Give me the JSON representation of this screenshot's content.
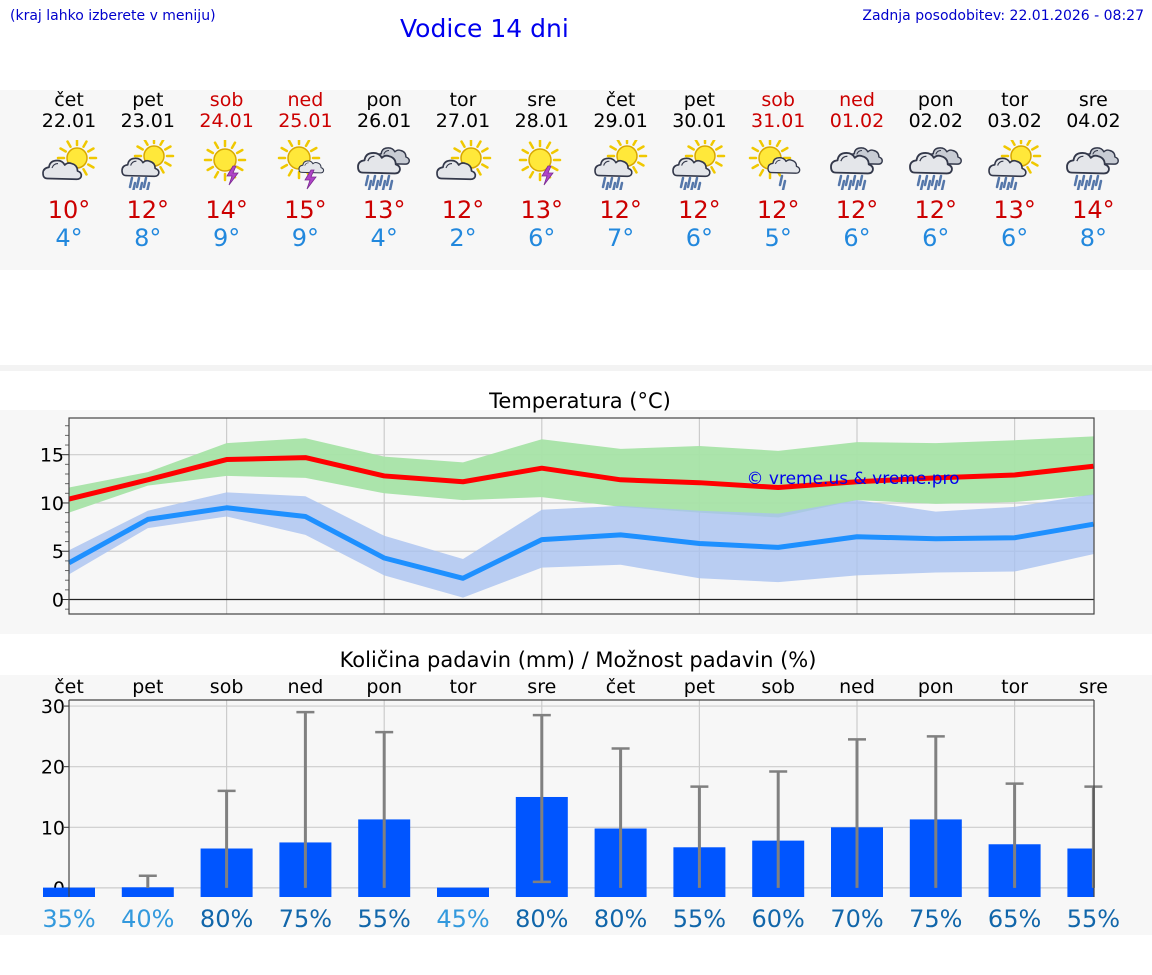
{
  "header": {
    "hint": "(kraj lahko izberete v meniju)",
    "title": "Vodice 14 dni",
    "updated": "Zadnja posodobitev: 22.01.2026 - 08:27"
  },
  "days": [
    {
      "name": "čet",
      "date": "22.01",
      "weekend": false,
      "icon": "sun-cloud",
      "max": "10°",
      "min": "4°"
    },
    {
      "name": "pet",
      "date": "23.01",
      "weekend": false,
      "icon": "sun-cloud-rain",
      "max": "12°",
      "min": "8°"
    },
    {
      "name": "sob",
      "date": "24.01",
      "weekend": true,
      "icon": "sun-thunder",
      "max": "14°",
      "min": "9°"
    },
    {
      "name": "ned",
      "date": "25.01",
      "weekend": true,
      "icon": "sun-cloud-thunder",
      "max": "15°",
      "min": "9°"
    },
    {
      "name": "pon",
      "date": "26.01",
      "weekend": false,
      "icon": "cloud-heavy-rain",
      "max": "13°",
      "min": "4°"
    },
    {
      "name": "tor",
      "date": "27.01",
      "weekend": false,
      "icon": "sun-cloud",
      "max": "12°",
      "min": "2°"
    },
    {
      "name": "sre",
      "date": "28.01",
      "weekend": false,
      "icon": "sun-thunder",
      "max": "13°",
      "min": "6°"
    },
    {
      "name": "čet",
      "date": "29.01",
      "weekend": false,
      "icon": "sun-cloud-rain",
      "max": "12°",
      "min": "7°"
    },
    {
      "name": "pet",
      "date": "30.01",
      "weekend": false,
      "icon": "sun-cloud-rain",
      "max": "12°",
      "min": "6°"
    },
    {
      "name": "sob",
      "date": "31.01",
      "weekend": true,
      "icon": "sun-light-rain",
      "max": "12°",
      "min": "5°"
    },
    {
      "name": "ned",
      "date": "01.02",
      "weekend": true,
      "icon": "cloud-heavy-rain",
      "max": "12°",
      "min": "6°"
    },
    {
      "name": "pon",
      "date": "02.02",
      "weekend": false,
      "icon": "cloud-heavy-rain",
      "max": "12°",
      "min": "6°"
    },
    {
      "name": "tor",
      "date": "03.02",
      "weekend": false,
      "icon": "sun-cloud-rain",
      "max": "13°",
      "min": "6°"
    },
    {
      "name": "sre",
      "date": "04.02",
      "weekend": false,
      "icon": "cloud-heavy-rain",
      "max": "14°",
      "min": "8°"
    }
  ],
  "colors": {
    "max_line": "#ff0000",
    "min_line": "#1e90ff",
    "max_band": "#a6e3a6",
    "min_band": "#a9c2f0",
    "bar": "#0055ff",
    "error": "#808080",
    "weekend_text": "#cc0000",
    "min_text": "#2288dd",
    "prob_light": "#3399dd",
    "prob_dark": "#1166aa"
  },
  "chart_data": [
    {
      "type": "line",
      "title": "Temperatura (°C)",
      "watermark": "© vreme.us & vreme.pro",
      "x": [
        0,
        1,
        2,
        3,
        4,
        5,
        6,
        7,
        8,
        9,
        10,
        11,
        12,
        13
      ],
      "ylim": [
        -1.5,
        18.8
      ],
      "yticks": [
        0,
        5,
        10,
        15
      ],
      "series": [
        {
          "name": "max",
          "values": [
            10.4,
            12.4,
            14.5,
            14.7,
            12.8,
            12.2,
            13.6,
            12.4,
            12.1,
            11.6,
            12.2,
            12.6,
            12.9,
            13.8
          ],
          "band_low": [
            9.0,
            11.8,
            12.8,
            12.6,
            11.0,
            10.3,
            10.6,
            9.6,
            9.0,
            8.5,
            10.3,
            9.9,
            10.1,
            10.8
          ],
          "band_high": [
            11.6,
            13.2,
            16.2,
            16.7,
            14.8,
            14.2,
            16.6,
            15.6,
            15.9,
            15.4,
            16.3,
            16.2,
            16.5,
            16.9
          ]
        },
        {
          "name": "min",
          "values": [
            3.8,
            8.3,
            9.5,
            8.6,
            4.3,
            2.2,
            6.2,
            6.7,
            5.8,
            5.4,
            6.5,
            6.3,
            6.4,
            7.8
          ],
          "band_low": [
            2.6,
            7.4,
            8.6,
            6.7,
            2.5,
            0.2,
            3.3,
            3.6,
            2.2,
            1.8,
            2.5,
            2.8,
            2.9,
            4.7
          ],
          "band_high": [
            5.1,
            9.2,
            11.1,
            10.7,
            6.6,
            4.2,
            9.3,
            9.7,
            9.2,
            8.9,
            10.3,
            9.1,
            9.6,
            10.9
          ]
        }
      ]
    },
    {
      "type": "bar",
      "title": "Količina padavin (mm) / Možnost padavin (%)",
      "categories": [
        "čet",
        "pet",
        "sob",
        "ned",
        "pon",
        "tor",
        "sre",
        "čet",
        "pet",
        "sob",
        "ned",
        "pon",
        "tor",
        "sre"
      ],
      "ylim": [
        -1.5,
        31
      ],
      "yticks": [
        0,
        10,
        20,
        30
      ],
      "values": [
        0,
        0.1,
        6.5,
        7.5,
        11.3,
        0,
        15,
        9.8,
        6.7,
        7.8,
        10,
        11.3,
        7.2,
        6.5
      ],
      "error_high": [
        0,
        2,
        16,
        29,
        25.7,
        0,
        28.5,
        23,
        16.7,
        19.2,
        24.5,
        25,
        17.2,
        16.7
      ],
      "error_low": [
        0,
        0,
        0,
        0,
        0,
        0,
        1,
        0,
        0,
        0,
        0,
        0,
        0,
        0
      ],
      "probability": [
        "35%",
        "40%",
        "80%",
        "75%",
        "55%",
        "45%",
        "80%",
        "80%",
        "55%",
        "60%",
        "70%",
        "75%",
        "65%",
        "55%"
      ]
    }
  ]
}
